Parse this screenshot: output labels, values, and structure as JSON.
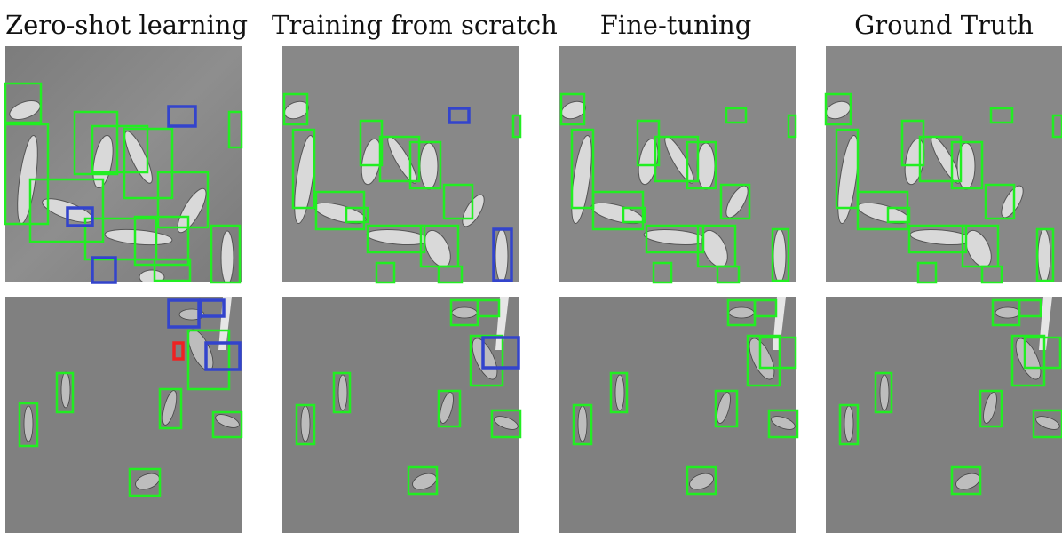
{
  "columns": [
    {
      "title": "Zero-shot learning"
    },
    {
      "title": "Training from scratch"
    },
    {
      "title": "Fine-tuning"
    },
    {
      "title": "Ground Truth"
    }
  ],
  "colors": {
    "correct_box": "#22ee22",
    "false_positive_box": "#3344cc",
    "error_box": "#ee2222",
    "background_top": "#8a8a8a",
    "background_bottom": "#808080"
  }
}
